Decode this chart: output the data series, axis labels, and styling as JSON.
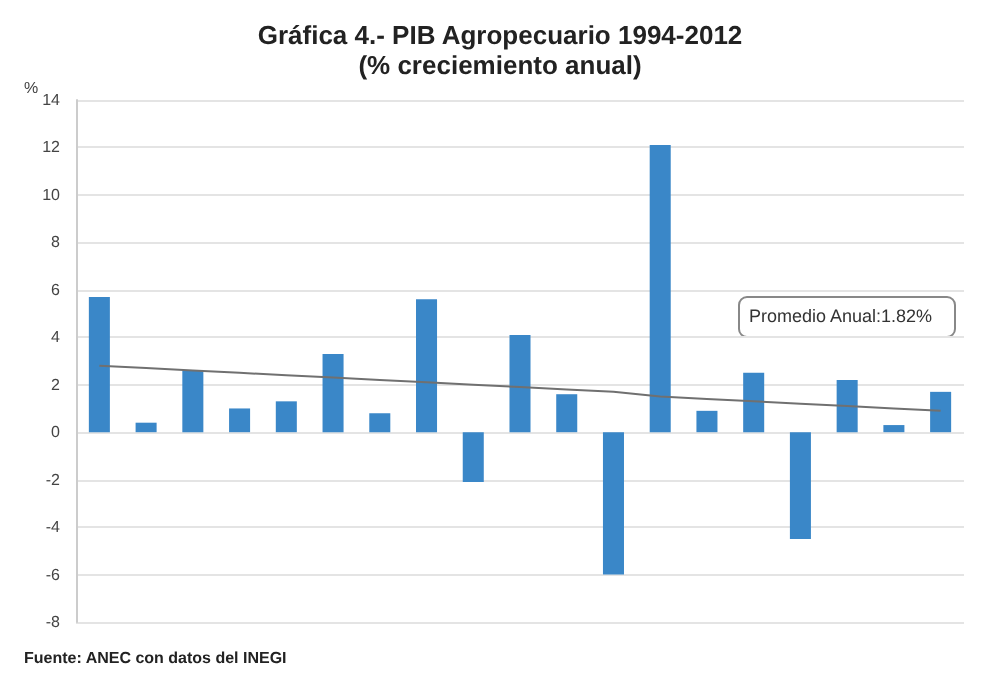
{
  "chart_data": {
    "type": "bar",
    "title": "Gráfica 4.- PIB Agropecuario 1994-2012",
    "subtitle": "(% creciemiento anual)",
    "ylabel": "%",
    "categories": [
      null,
      null,
      null,
      null,
      null,
      null,
      null,
      null,
      null,
      null,
      null,
      null,
      null,
      null,
      null,
      null,
      null,
      null,
      null
    ],
    "series": [
      {
        "color": "#3a87c8",
        "values": [
          5.7,
          0.4,
          2.6,
          1.0,
          1.3,
          3.3,
          0.8,
          5.6,
          -2.1,
          4.1,
          1.6,
          -6.0,
          12.1,
          0.9,
          2.5,
          -4.5,
          2.2,
          0.3,
          1.7
        ]
      },
      {
        "type": "line",
        "color": "#707070",
        "values": [
          2.8,
          2.7,
          2.6,
          2.5,
          2.4,
          2.3,
          2.2,
          2.1,
          2.0,
          1.9,
          1.8,
          1.7,
          1.5,
          1.4,
          1.3,
          1.2,
          1.1,
          1.0,
          0.9
        ]
      }
    ],
    "ylim": [
      -8,
      14
    ],
    "yticks": [
      -8,
      -6,
      -4,
      -2,
      0,
      2,
      4,
      6,
      8,
      10,
      12,
      14
    ],
    "grid": "y",
    "marker": "none",
    "annotations": [
      "Promedio Anual:1.82%",
      "Fuente: ANEC con datos del INEGI"
    ]
  }
}
